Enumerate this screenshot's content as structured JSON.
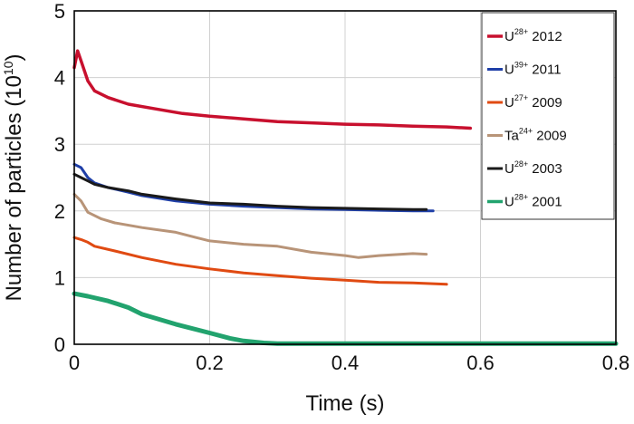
{
  "chart_data": {
    "type": "line",
    "xlabel": "Time (s)",
    "ylabel_main": "Number of particles (10",
    "ylabel_sup": "10",
    "ylabel_close": ")",
    "xlim": [
      0,
      0.8
    ],
    "ylim": [
      0,
      5
    ],
    "x_ticks": [
      "0",
      "0.2",
      "0.4",
      "0.6",
      "0.8"
    ],
    "y_ticks": [
      "0",
      "1",
      "2",
      "3",
      "4",
      "5"
    ],
    "grid": true,
    "legend_position": "top-right",
    "series": [
      {
        "name": "U28+ 2012",
        "legend": {
          "ion": "U",
          "charge": "28+",
          "year": "2012"
        },
        "color": "#c8102e",
        "width": 3.5,
        "x": [
          0,
          0.005,
          0.01,
          0.02,
          0.03,
          0.05,
          0.08,
          0.12,
          0.16,
          0.2,
          0.25,
          0.3,
          0.35,
          0.4,
          0.45,
          0.5,
          0.55,
          0.585
        ],
        "y": [
          4.15,
          4.4,
          4.25,
          3.95,
          3.8,
          3.7,
          3.6,
          3.53,
          3.46,
          3.42,
          3.38,
          3.34,
          3.32,
          3.3,
          3.29,
          3.27,
          3.26,
          3.24
        ]
      },
      {
        "name": "U39+ 2011",
        "legend": {
          "ion": "U",
          "charge": "39+",
          "year": "2011"
        },
        "color": "#1f3fa8",
        "width": 3,
        "x": [
          0,
          0.01,
          0.02,
          0.03,
          0.05,
          0.08,
          0.1,
          0.15,
          0.2,
          0.25,
          0.3,
          0.35,
          0.4,
          0.45,
          0.5,
          0.53
        ],
        "y": [
          2.7,
          2.65,
          2.5,
          2.42,
          2.35,
          2.28,
          2.23,
          2.15,
          2.1,
          2.07,
          2.05,
          2.03,
          2.02,
          2.01,
          2.0,
          2.0
        ]
      },
      {
        "name": "U28+ 2003",
        "legend": {
          "ion": "U",
          "charge": "28+",
          "year": "2003"
        },
        "color": "#1a1a1a",
        "width": 3,
        "x": [
          0,
          0.01,
          0.02,
          0.03,
          0.05,
          0.08,
          0.1,
          0.15,
          0.2,
          0.25,
          0.3,
          0.35,
          0.4,
          0.45,
          0.5,
          0.52
        ],
        "y": [
          2.55,
          2.5,
          2.45,
          2.4,
          2.35,
          2.3,
          2.25,
          2.18,
          2.12,
          2.1,
          2.07,
          2.05,
          2.04,
          2.03,
          2.02,
          2.02
        ]
      },
      {
        "name": "Ta24+ 2009",
        "legend": {
          "ion": "Ta",
          "charge": "24+",
          "year": "2009"
        },
        "color": "#b89478",
        "width": 3,
        "x": [
          0,
          0.01,
          0.02,
          0.04,
          0.06,
          0.1,
          0.15,
          0.18,
          0.2,
          0.25,
          0.3,
          0.35,
          0.4,
          0.42,
          0.45,
          0.5,
          0.52
        ],
        "y": [
          2.25,
          2.15,
          1.98,
          1.88,
          1.82,
          1.75,
          1.68,
          1.6,
          1.55,
          1.5,
          1.47,
          1.38,
          1.33,
          1.3,
          1.33,
          1.36,
          1.35
        ]
      },
      {
        "name": "U27+ 2009",
        "legend": {
          "ion": "U",
          "charge": "27+",
          "year": "2009"
        },
        "color": "#e04a12",
        "width": 3,
        "x": [
          0,
          0.01,
          0.02,
          0.03,
          0.06,
          0.1,
          0.15,
          0.2,
          0.25,
          0.3,
          0.35,
          0.4,
          0.45,
          0.5,
          0.55
        ],
        "y": [
          1.6,
          1.57,
          1.53,
          1.47,
          1.4,
          1.3,
          1.2,
          1.13,
          1.07,
          1.03,
          0.99,
          0.96,
          0.93,
          0.92,
          0.9
        ]
      },
      {
        "name": "U28+ 2001",
        "legend": {
          "ion": "U",
          "charge": "28+",
          "year": "2001"
        },
        "color": "#22a36e",
        "width": 5,
        "x": [
          0,
          0.02,
          0.05,
          0.08,
          0.1,
          0.15,
          0.2,
          0.23,
          0.25,
          0.28,
          0.3,
          0.35,
          0.4,
          0.5,
          0.6,
          0.7,
          0.8
        ],
        "y": [
          0.76,
          0.72,
          0.65,
          0.55,
          0.45,
          0.3,
          0.17,
          0.09,
          0.05,
          0.02,
          0.01,
          0.01,
          0.01,
          0.01,
          0.01,
          0.01,
          0.01
        ]
      }
    ],
    "legend_order": [
      0,
      1,
      4,
      3,
      2,
      5
    ]
  }
}
